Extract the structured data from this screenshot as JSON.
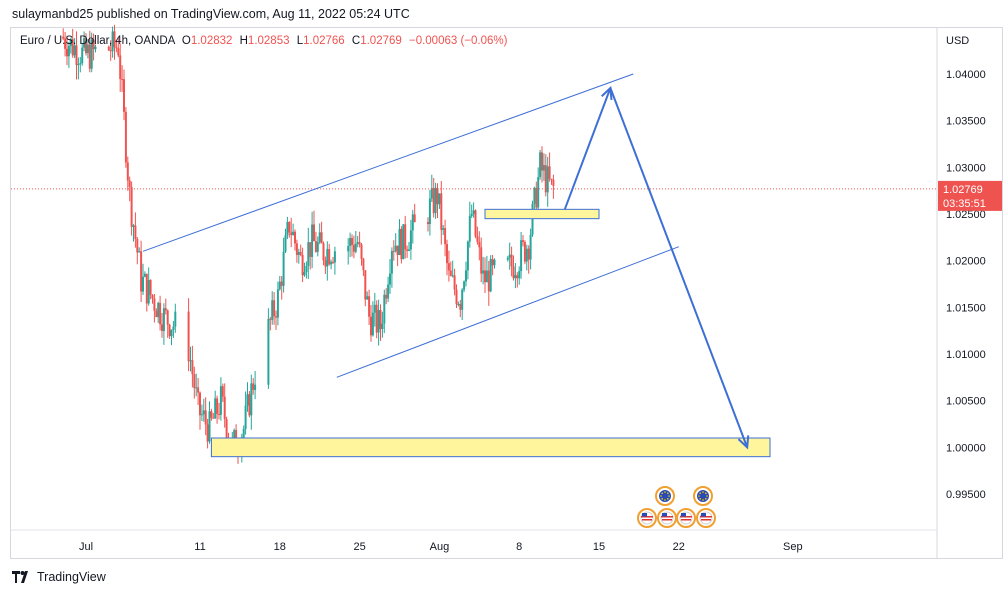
{
  "header": {
    "published": "sulaymanbd25 published on TradingView.com, Aug 11, 2022 05:24 UTC"
  },
  "legend": {
    "symbol": "Euro / U.S. Dollar, 4h, OANDA",
    "open_label": "O",
    "open": "1.02832",
    "high_label": "H",
    "high": "1.02853",
    "low_label": "L",
    "low": "1.02766",
    "close_label": "C",
    "close": "1.02769",
    "change": "−0.00063 (−0.06%)"
  },
  "footer": {
    "brand": "TradingView"
  },
  "colors": {
    "up": "#26a69a",
    "down": "#ef5350",
    "trendline": "#3d6fd6",
    "zone_fill": "#fff59d",
    "zone_border": "#3d6fd6",
    "price_tag": "#ef5350"
  },
  "chart_data": {
    "type": "candlestick",
    "currency_label": "USD",
    "y_ticks": [
      "1.04000",
      "1.03500",
      "1.03000",
      "1.02500",
      "1.02000",
      "1.01500",
      "1.01000",
      "1.00500",
      "1.00000",
      "0.99500"
    ],
    "y_tick_values": [
      1.04,
      1.035,
      1.03,
      1.025,
      1.02,
      1.015,
      1.01,
      1.005,
      1.0,
      0.995
    ],
    "x_ticks": [
      "Jul",
      "11",
      "18",
      "25",
      "Aug",
      "8",
      "15",
      "22",
      "Sep"
    ],
    "x_tick_dates": [
      "2022-07-01",
      "2022-07-11",
      "2022-07-18",
      "2022-07-25",
      "2022-08-01",
      "2022-08-08",
      "2022-08-15",
      "2022-08-22",
      "2022-09-01"
    ],
    "last_price": "1.02769",
    "countdown": "03:35:51",
    "close_path": [
      [
        "2022-06-29",
        1.044
      ],
      [
        "2022-07-01",
        1.042
      ],
      [
        "2022-07-04",
        1.043
      ],
      [
        "2022-07-05",
        1.027
      ],
      [
        "2022-07-06",
        1.018
      ],
      [
        "2022-07-07",
        1.016
      ],
      [
        "2022-07-08",
        1.014
      ],
      [
        "2022-07-10",
        1.012
      ],
      [
        "2022-07-11",
        1.004
      ],
      [
        "2022-07-12",
        1.002
      ],
      [
        "2022-07-13",
        1.005
      ],
      [
        "2022-07-14",
        1.0
      ],
      [
        "2022-07-15",
        1.002
      ],
      [
        "2022-07-16",
        1.008
      ],
      [
        "2022-07-18",
        1.016
      ],
      [
        "2022-07-19",
        1.024
      ],
      [
        "2022-07-20",
        1.02
      ],
      [
        "2022-07-21",
        1.022
      ],
      [
        "2022-07-22",
        1.021
      ],
      [
        "2022-07-25",
        1.022
      ],
      [
        "2022-07-26",
        1.014
      ],
      [
        "2022-07-27",
        1.013
      ],
      [
        "2022-07-28",
        1.022
      ],
      [
        "2022-07-29",
        1.022
      ],
      [
        "2022-07-31",
        1.025
      ],
      [
        "2022-08-01",
        1.027
      ],
      [
        "2022-08-02",
        1.018
      ],
      [
        "2022-08-03",
        1.016
      ],
      [
        "2022-08-04",
        1.025
      ],
      [
        "2022-08-05",
        1.018
      ],
      [
        "2022-08-07",
        1.019
      ],
      [
        "2022-08-08",
        1.02
      ],
      [
        "2022-08-09",
        1.022
      ],
      [
        "2022-08-10",
        1.03
      ],
      [
        "2022-08-11",
        1.0277
      ]
    ],
    "drawings": {
      "channel_upper": [
        [
          "2022-07-06",
          1.021
        ],
        [
          "2022-08-18",
          1.04
        ]
      ],
      "channel_lower": [
        [
          "2022-07-23",
          1.0075
        ],
        [
          "2022-08-22",
          1.0215
        ]
      ],
      "zone_resistance": {
        "from": "2022-08-05",
        "to": "2022-08-15",
        "y_low": 1.0245,
        "y_high": 1.0255
      },
      "zone_support": {
        "from": "2022-07-12",
        "to": "2022-08-30",
        "y_low": 0.999,
        "y_high": 1.001
      },
      "arrow_up": [
        [
          "2022-08-12",
          1.0255
        ],
        [
          "2022-08-16",
          1.0385
        ]
      ],
      "arrow_down": [
        [
          "2022-08-16",
          1.0385
        ],
        [
          "2022-08-28",
          1.0
        ]
      ]
    }
  }
}
